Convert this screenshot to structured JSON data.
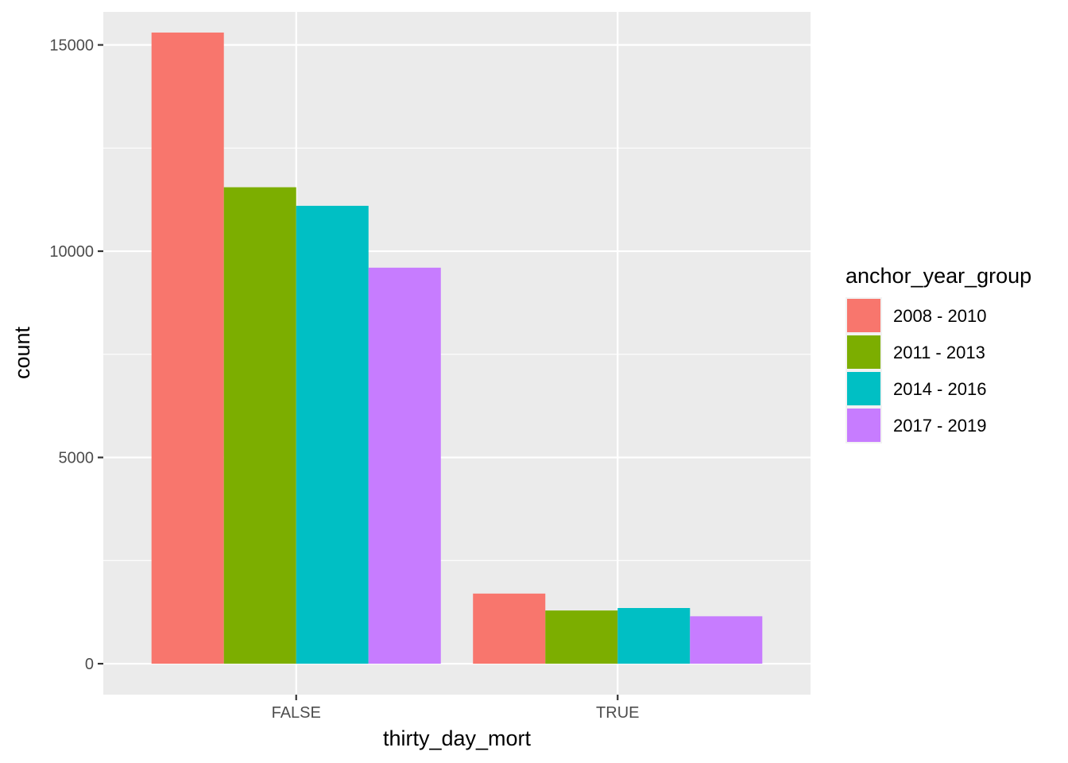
{
  "chart_data": {
    "type": "bar",
    "xlabel": "thirty_day_mort",
    "ylabel": "count",
    "categories": [
      "FALSE",
      "TRUE"
    ],
    "ylim": [
      -750,
      15800
    ],
    "yticks": [
      0,
      5000,
      10000,
      15000
    ],
    "ytick_labels": [
      "0",
      "5000",
      "10000",
      "15000"
    ],
    "grid": true,
    "legend": {
      "title": "anchor_year_group",
      "position": "right"
    },
    "series": [
      {
        "name": "2008 - 2010",
        "color": "#F8766D",
        "values": [
          15300,
          1700
        ]
      },
      {
        "name": "2011 - 2013",
        "color": "#7CAE00",
        "values": [
          11550,
          1290
        ]
      },
      {
        "name": "2014 - 2016",
        "color": "#00BFC4",
        "values": [
          11100,
          1350
        ]
      },
      {
        "name": "2017 - 2019",
        "color": "#C77CFF",
        "values": [
          9600,
          1150
        ]
      }
    ]
  }
}
